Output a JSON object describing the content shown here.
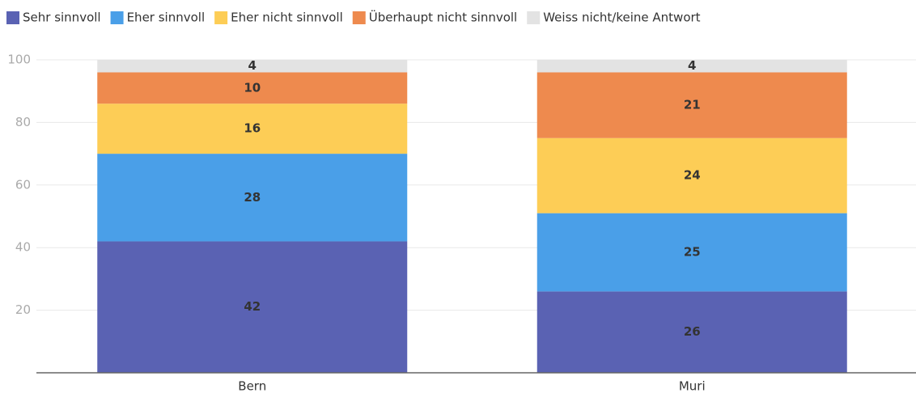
{
  "chart_data": {
    "type": "stacked_bar",
    "categories": [
      "Bern",
      "Muri"
    ],
    "series": [
      {
        "name": "Sehr sinnvoll",
        "color": "#5a62b3",
        "values": [
          42,
          26
        ]
      },
      {
        "name": "Eher sinnvoll",
        "color": "#4a9fe8",
        "values": [
          28,
          25
        ]
      },
      {
        "name": "Eher nicht sinnvoll",
        "color": "#fdcd56",
        "values": [
          16,
          24
        ]
      },
      {
        "name": "Überhaupt nicht sinnvoll",
        "color": "#ee8a4e",
        "values": [
          10,
          21
        ]
      },
      {
        "name": "Weiss nicht/keine Antwort",
        "color": "#e3e3e3",
        "values": [
          4,
          4
        ]
      }
    ],
    "ylim": [
      0,
      100
    ],
    "yticks": [
      20,
      40,
      60,
      80,
      100
    ],
    "grid": true,
    "legend": "top"
  }
}
